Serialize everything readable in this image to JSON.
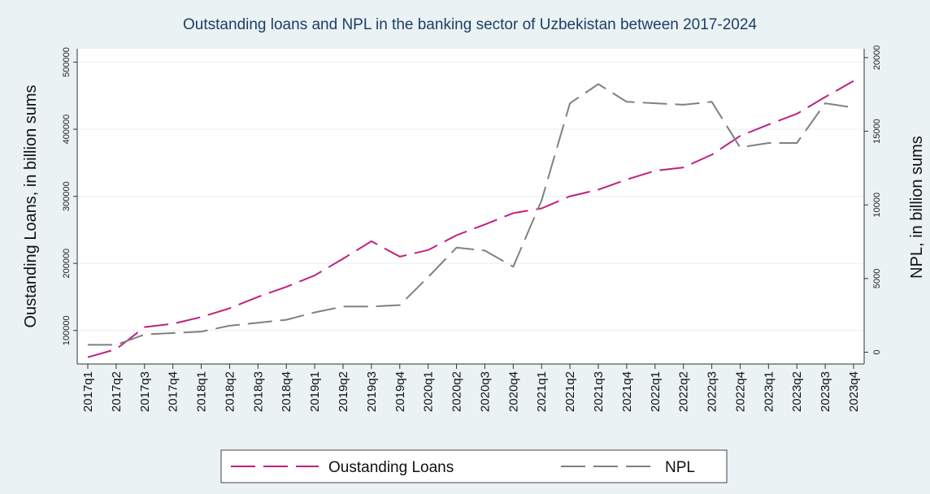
{
  "chart_data": {
    "type": "line",
    "title": "Outstanding loans and NPL in the banking sector of Uzbekistan between 2017-2024",
    "ylabel": "Oustanding Loans, in billion sums",
    "y2label": "NPL, in billion sums",
    "ylim": [
      50000,
      520000
    ],
    "y2lim": [
      -800,
      20600
    ],
    "yticks": [
      100000,
      200000,
      300000,
      400000,
      500000
    ],
    "y2ticks": [
      0,
      5000,
      10000,
      15000,
      20000
    ],
    "ytick_labels": [
      "100000",
      "200000",
      "300000",
      "400000",
      "500000"
    ],
    "y2tick_labels": [
      "0",
      "5000",
      "10000",
      "15000",
      "20000"
    ],
    "categories": [
      "2017q1",
      "2017q2",
      "2017q3",
      "2017q4",
      "2018q1",
      "2018q2",
      "2018q3",
      "2018q4",
      "2019q1",
      "2019q2",
      "2019q3",
      "2019q4",
      "2020q1",
      "2020q2",
      "2020q3",
      "2020q4",
      "2021q1",
      "2021q2",
      "2021q3",
      "2021q4",
      "2022q1",
      "2022q2",
      "2022q3",
      "2022q4",
      "2023q1",
      "2023q2",
      "2023q3",
      "2023q4"
    ],
    "series": [
      {
        "name": "Oustanding Loans",
        "axis": "left",
        "color": "#c0207f",
        "dash": "long-dash",
        "values": [
          60000,
          72000,
          105000,
          110000,
          120000,
          133000,
          150000,
          165000,
          182000,
          207000,
          233000,
          210000,
          220000,
          242000,
          258000,
          275000,
          282000,
          300000,
          310000,
          325000,
          338000,
          343000,
          362000,
          390000,
          407000,
          423000,
          448000,
          472000
        ]
      },
      {
        "name": "NPL",
        "axis": "right",
        "color": "#808080",
        "dash": "long-dash",
        "values": [
          500,
          500,
          1200,
          1300,
          1400,
          1800,
          2000,
          2200,
          2700,
          3100,
          3100,
          3200,
          5100,
          7100,
          6900,
          5800,
          10300,
          16900,
          18200,
          17000,
          16900,
          16800,
          17000,
          13900,
          14200,
          14200,
          16900,
          16600
        ]
      }
    ],
    "grid": true,
    "legend_position": "bottom-center"
  }
}
